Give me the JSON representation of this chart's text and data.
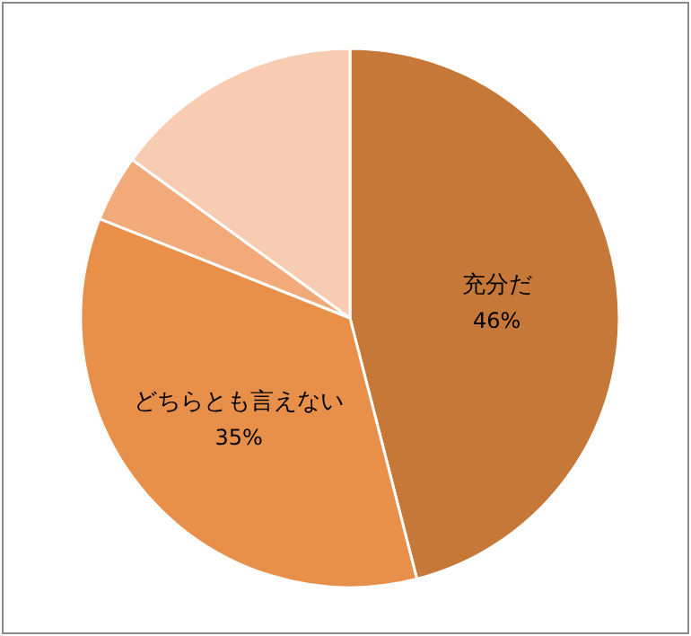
{
  "chart_data": {
    "type": "pie",
    "categories": [
      "充分だ",
      "どちらとも言えない",
      null,
      null
    ],
    "values": [
      46,
      35,
      4,
      15
    ],
    "colors": [
      "#c57838",
      "#e8904a",
      "#f3aa7a",
      "#f8cbb3"
    ],
    "value_labels": [
      "46%",
      "35%",
      null,
      null
    ]
  }
}
